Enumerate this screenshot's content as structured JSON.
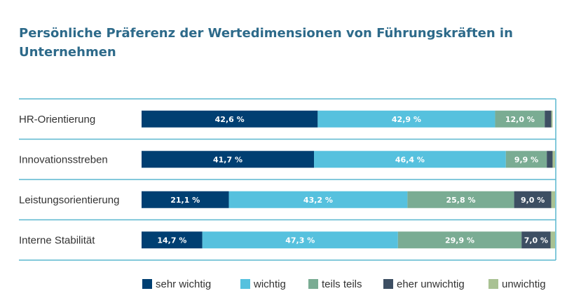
{
  "chart_data": {
    "type": "bar",
    "orientation": "horizontal-stacked",
    "title": "Persönliche Präferenz der Wertedimensionen von Führungskräften in Unternehmen",
    "categories": [
      "HR-Orientierung",
      "Innovationsstreben",
      "Leistungsorientierung",
      "Interne Stabilität"
    ],
    "series": [
      {
        "name": "sehr wichtig",
        "color": "#003f72",
        "values": [
          42.6,
          41.7,
          21.1,
          14.7
        ],
        "labels": [
          "42,6 %",
          "41,7 %",
          "21,1 %",
          "14,7 %"
        ]
      },
      {
        "name": "wichtig",
        "color": "#56c1de",
        "values": [
          42.9,
          46.4,
          43.2,
          47.3
        ],
        "labels": [
          "42,9 %",
          "46,4 %",
          "43,2 %",
          "47,3 %"
        ]
      },
      {
        "name": "teils teils",
        "color": "#7aac93",
        "values": [
          12.0,
          9.9,
          25.8,
          29.9
        ],
        "labels": [
          "12,0 %",
          "9,9 %",
          "25,8 %",
          "29,9 %"
        ]
      },
      {
        "name": "eher unwichtig",
        "color": "#3d4f63",
        "values": [
          1.6,
          1.4,
          9.0,
          7.0
        ],
        "labels": [
          "",
          "",
          "9,0 %",
          "7,0 %"
        ]
      },
      {
        "name": "unwichtig",
        "color": "#a9c293",
        "values": [
          0.3,
          0.6,
          0.9,
          1.1
        ],
        "labels": [
          "",
          "",
          "",
          ""
        ]
      }
    ],
    "xlim": [
      0,
      100
    ],
    "legend": "bottom-right"
  }
}
